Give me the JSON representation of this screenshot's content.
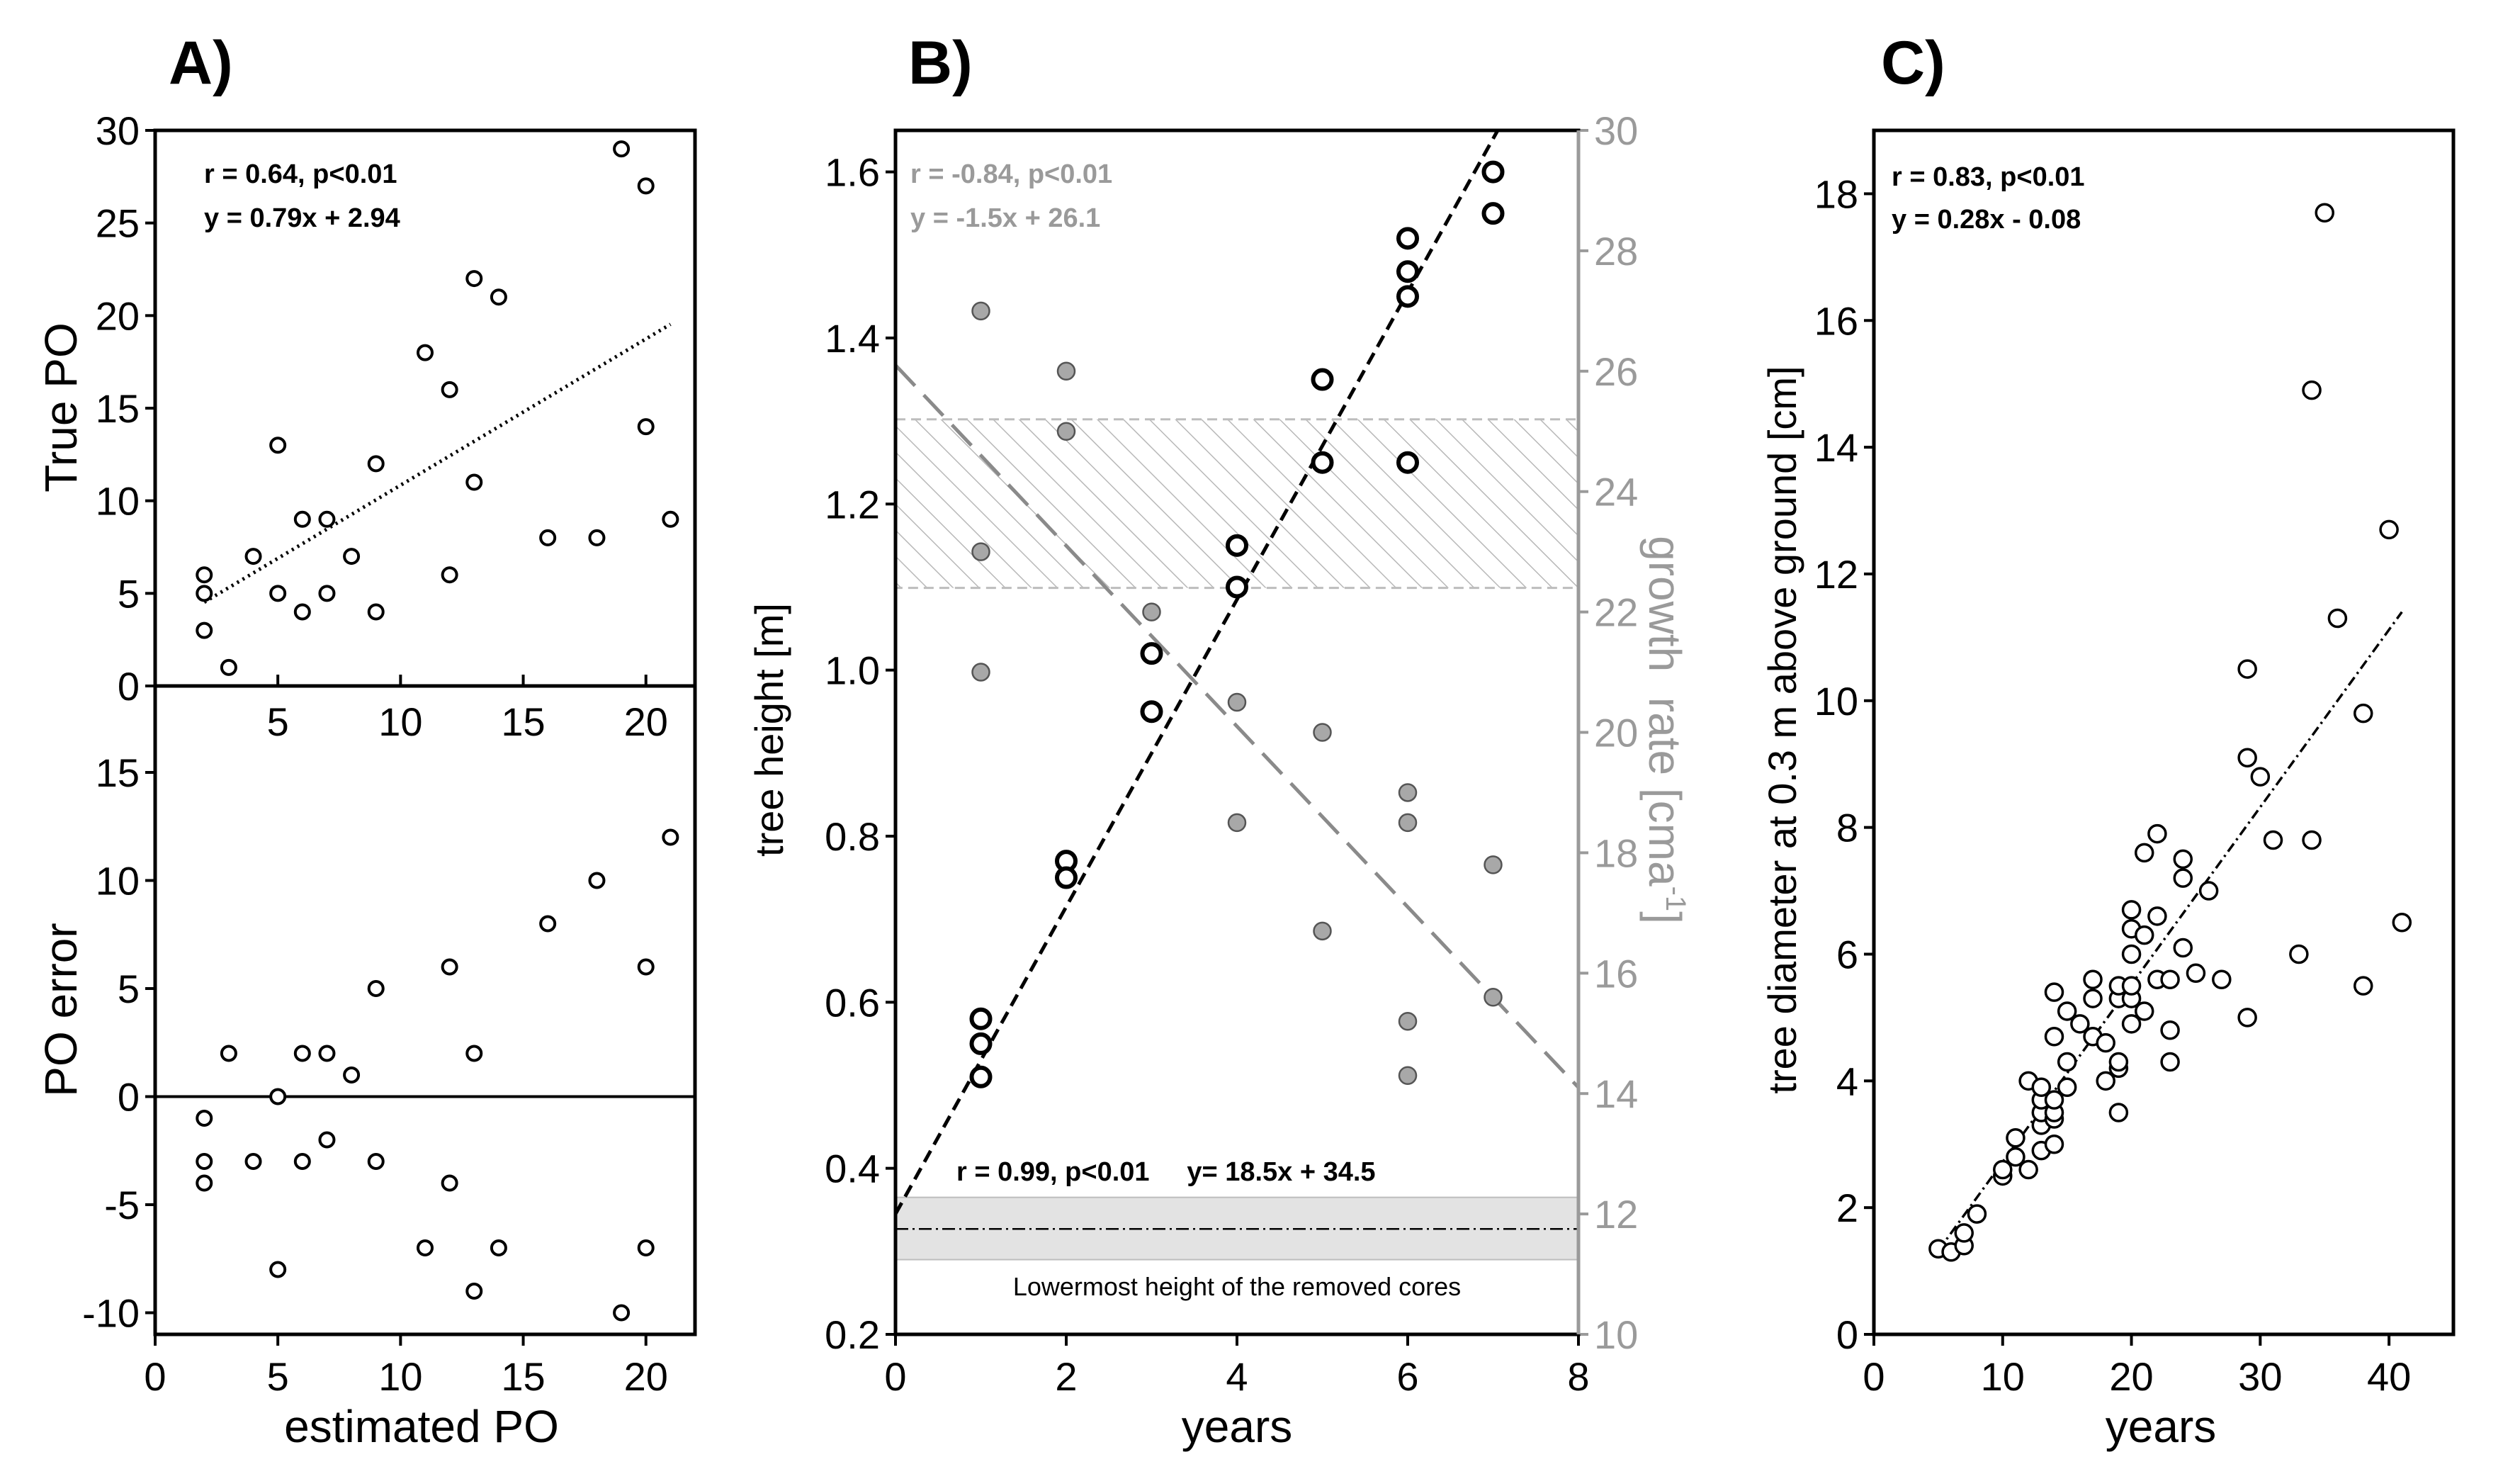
{
  "chart_data": [
    {
      "panel": "A",
      "panel_label": "A)",
      "type": "scatter",
      "subplots": [
        {
          "name": "true-po",
          "ylabel": "True PO",
          "xlim": [
            0,
            22
          ],
          "ylim": [
            0,
            30
          ],
          "yticks": [
            0,
            5,
            10,
            15,
            20,
            25,
            30
          ],
          "xticks": [
            5,
            10,
            15,
            20
          ],
          "annotation_lines": [
            "r = 0.64, p<0.01",
            "y = 0.79x + 2.94"
          ],
          "fit": {
            "slope": 0.79,
            "intercept": 2.94,
            "x_range": [
              2,
              21
            ]
          },
          "points": [
            [
              2,
              6
            ],
            [
              2,
              5
            ],
            [
              2,
              3
            ],
            [
              3,
              1
            ],
            [
              4,
              7
            ],
            [
              5,
              13
            ],
            [
              5,
              5
            ],
            [
              6,
              9
            ],
            [
              6,
              4
            ],
            [
              7,
              9
            ],
            [
              7,
              5
            ],
            [
              8,
              7
            ],
            [
              9,
              12
            ],
            [
              9,
              4
            ],
            [
              11,
              18
            ],
            [
              12,
              16
            ],
            [
              12,
              6
            ],
            [
              13,
              22
            ],
            [
              13,
              11
            ],
            [
              14,
              21
            ],
            [
              16,
              8
            ],
            [
              18,
              8
            ],
            [
              19,
              29
            ],
            [
              20,
              27
            ],
            [
              20,
              14
            ],
            [
              21,
              9
            ]
          ]
        },
        {
          "name": "po-error",
          "ylabel": "PO error",
          "xlabel": "estimated PO",
          "xlim": [
            0,
            22
          ],
          "ylim": [
            -11,
            19
          ],
          "yticks": [
            -10,
            -5,
            0,
            5,
            10,
            15
          ],
          "xticks": [
            0,
            5,
            10,
            15,
            20
          ],
          "points": [
            [
              2,
              -1
            ],
            [
              2,
              -3
            ],
            [
              2,
              -4
            ],
            [
              3,
              2
            ],
            [
              4,
              -3
            ],
            [
              5,
              0
            ],
            [
              5,
              -8
            ],
            [
              6,
              2
            ],
            [
              6,
              -3
            ],
            [
              7,
              2
            ],
            [
              7,
              -2
            ],
            [
              8,
              1
            ],
            [
              9,
              5
            ],
            [
              9,
              -3
            ],
            [
              11,
              -7
            ],
            [
              12,
              6
            ],
            [
              12,
              -4
            ],
            [
              13,
              2
            ],
            [
              13,
              -9
            ],
            [
              14,
              -7
            ],
            [
              16,
              8
            ],
            [
              18,
              10
            ],
            [
              19,
              -10
            ],
            [
              20,
              6
            ],
            [
              20,
              -7
            ],
            [
              21,
              12
            ]
          ]
        }
      ]
    },
    {
      "panel": "B",
      "panel_label": "B)",
      "type": "scatter",
      "xlabel": "years",
      "ylabel_left": "tree height [m]",
      "ylabel_right_parts": [
        "growth  rate [cma",
        "-1",
        "]"
      ],
      "xlim": [
        0,
        8
      ],
      "ylim_left": [
        0.2,
        1.65
      ],
      "ylim_right": [
        10,
        30
      ],
      "xticks": [
        0,
        2,
        4,
        6,
        8
      ],
      "yticks_left": [
        "0.2",
        "0.4",
        "0.6",
        "0.8",
        "1.0",
        "1.2",
        "1.4",
        "1.6"
      ],
      "yticks_right": [
        10,
        12,
        14,
        16,
        18,
        20,
        22,
        24,
        26,
        28,
        30
      ],
      "height_annotation": "r = 0.99, p<0.01     y= 18.5x + 34.5",
      "growth_annotation_lines": [
        "r = -0.84, p<0.01",
        "y = -1.5x + 26.1"
      ],
      "height_fit": {
        "slope": 0.185,
        "intercept": 0.345,
        "x_range": [
          0,
          8
        ]
      },
      "growth_fit": {
        "slope": -1.5,
        "intercept": 26.1,
        "x_range": [
          0,
          8
        ]
      },
      "hatched_band_growth": [
        22.4,
        25.2
      ],
      "cores_band_height": [
        0.29,
        0.365
      ],
      "cores_line_height": 0.327,
      "cores_label": "Lowermost height of the removed cores",
      "height_points": [
        [
          1,
          0.58
        ],
        [
          1,
          0.55
        ],
        [
          1,
          0.51
        ],
        [
          2,
          0.77
        ],
        [
          2,
          0.75
        ],
        [
          3,
          1.02
        ],
        [
          3,
          0.95
        ],
        [
          4,
          1.15
        ],
        [
          4,
          1.1
        ],
        [
          5,
          1.35
        ],
        [
          5,
          1.25
        ],
        [
          6,
          1.52
        ],
        [
          6,
          1.48
        ],
        [
          6,
          1.45
        ],
        [
          6,
          1.25
        ],
        [
          7,
          1.6
        ],
        [
          7,
          1.55
        ]
      ],
      "growth_points": [
        [
          1,
          27
        ],
        [
          1,
          23
        ],
        [
          1,
          21
        ],
        [
          2,
          26
        ],
        [
          2,
          25
        ],
        [
          3,
          22
        ],
        [
          4,
          20.5
        ],
        [
          4,
          18.5
        ],
        [
          5,
          20
        ],
        [
          5,
          16.7
        ],
        [
          6,
          19
        ],
        [
          6,
          18.5
        ],
        [
          6,
          15.2
        ],
        [
          6,
          14.3
        ],
        [
          7,
          17.8
        ],
        [
          7,
          15.6
        ]
      ]
    },
    {
      "panel": "C",
      "panel_label": "C)",
      "type": "scatter",
      "xlabel": "years",
      "ylabel": "tree diameter at 0.3 m above ground [cm]",
      "xlim": [
        0,
        45
      ],
      "ylim": [
        0,
        19
      ],
      "xticks": [
        0,
        10,
        20,
        30,
        40
      ],
      "yticks": [
        0,
        2,
        4,
        6,
        8,
        10,
        12,
        14,
        16,
        18
      ],
      "annotation_lines": [
        "r = 0.83, p<0.01",
        "y = 0.28x - 0.08"
      ],
      "fit": {
        "slope": 0.28,
        "intercept": -0.08,
        "x_range": [
          5,
          41
        ]
      },
      "points": [
        [
          5,
          1.35
        ],
        [
          6,
          1.3
        ],
        [
          7,
          1.4
        ],
        [
          7,
          1.6
        ],
        [
          8,
          1.9
        ],
        [
          10,
          2.5
        ],
        [
          10,
          2.6
        ],
        [
          11,
          2.8
        ],
        [
          11,
          3.1
        ],
        [
          12,
          2.6
        ],
        [
          12,
          4.0
        ],
        [
          13,
          2.9
        ],
        [
          13,
          3.3
        ],
        [
          13,
          3.5
        ],
        [
          13,
          3.7
        ],
        [
          13,
          3.9
        ],
        [
          14,
          3.0
        ],
        [
          14,
          3.4
        ],
        [
          14,
          3.5
        ],
        [
          14,
          3.7
        ],
        [
          14,
          4.7
        ],
        [
          14,
          5.4
        ],
        [
          15,
          3.9
        ],
        [
          15,
          4.3
        ],
        [
          15,
          5.1
        ],
        [
          16,
          4.9
        ],
        [
          17,
          4.7
        ],
        [
          17,
          5.3
        ],
        [
          17,
          5.6
        ],
        [
          18,
          4.0
        ],
        [
          18,
          4.6
        ],
        [
          19,
          3.5
        ],
        [
          19,
          4.2
        ],
        [
          19,
          4.3
        ],
        [
          19,
          5.3
        ],
        [
          19,
          5.5
        ],
        [
          20,
          4.9
        ],
        [
          20,
          5.3
        ],
        [
          20,
          5.5
        ],
        [
          20,
          6.0
        ],
        [
          20,
          6.4
        ],
        [
          20,
          6.7
        ],
        [
          21,
          5.1
        ],
        [
          21,
          6.3
        ],
        [
          21,
          7.6
        ],
        [
          22,
          5.6
        ],
        [
          22,
          6.6
        ],
        [
          22,
          7.9
        ],
        [
          23,
          4.3
        ],
        [
          23,
          4.8
        ],
        [
          23,
          5.6
        ],
        [
          24,
          6.1
        ],
        [
          24,
          7.2
        ],
        [
          24,
          7.5
        ],
        [
          25,
          5.7
        ],
        [
          26,
          7.0
        ],
        [
          27,
          5.6
        ],
        [
          29,
          5.0
        ],
        [
          29,
          9.1
        ],
        [
          29,
          10.5
        ],
        [
          30,
          8.8
        ],
        [
          31,
          7.8
        ],
        [
          33,
          6.0
        ],
        [
          34,
          7.8
        ],
        [
          34,
          14.9
        ],
        [
          35,
          17.7
        ],
        [
          36,
          11.3
        ],
        [
          38,
          5.5
        ],
        [
          38,
          9.8
        ],
        [
          40,
          12.7
        ],
        [
          41,
          6.5
        ]
      ]
    }
  ]
}
